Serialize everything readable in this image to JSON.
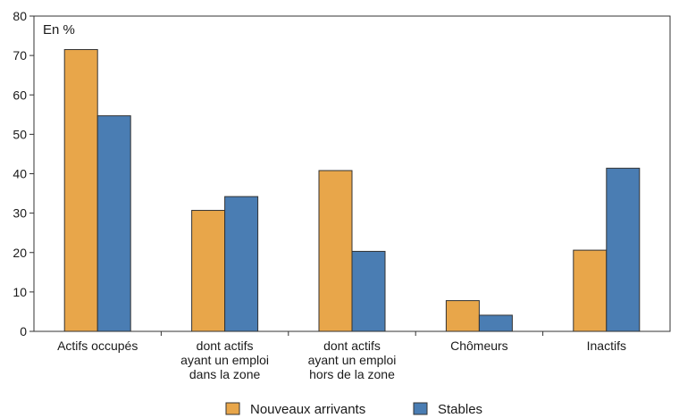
{
  "chart_data": {
    "type": "bar",
    "unit_label": "En %",
    "categories": [
      [
        "Actifs occupés"
      ],
      [
        "dont actifs",
        "ayant un emploi",
        "dans la zone"
      ],
      [
        "dont actifs",
        "ayant un emploi",
        "hors de la zone"
      ],
      [
        "Chômeurs"
      ],
      [
        "Inactifs"
      ]
    ],
    "series": [
      {
        "name": "Nouveaux arrivants",
        "color": "#E8A64A",
        "values": [
          71.5,
          30.7,
          40.8,
          7.8,
          20.6
        ]
      },
      {
        "name": "Stables",
        "color": "#4A7DB3",
        "values": [
          54.7,
          34.2,
          20.3,
          4.1,
          41.4
        ]
      }
    ],
    "ylim": [
      0,
      80
    ],
    "yticks": [
      0,
      10,
      20,
      30,
      40,
      50,
      60,
      70,
      80
    ],
    "grid": false,
    "legend_position": "bottom-center"
  }
}
